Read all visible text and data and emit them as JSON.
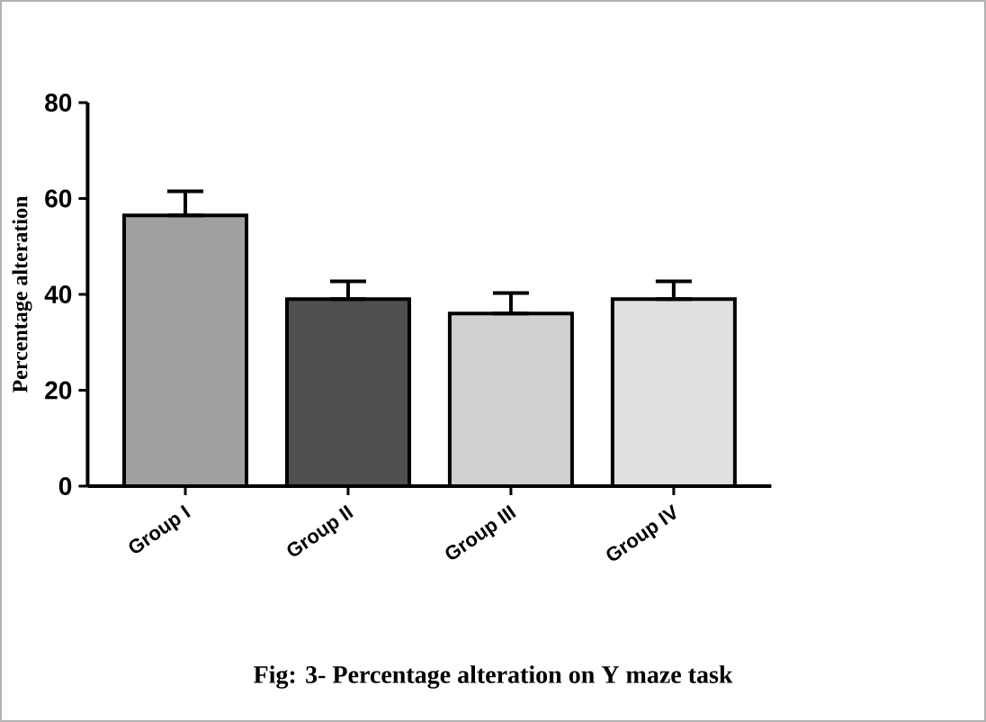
{
  "chart_data": {
    "type": "bar",
    "title": "Fig: 3- Percentage alteration on Y maze task",
    "ylabel": "Percentage alteration",
    "categories": [
      "Group I",
      "Group II",
      "Group III",
      "Group IV"
    ],
    "values": [
      56.5,
      39,
      36,
      39
    ],
    "errors": [
      [
        56.5,
        61.5
      ],
      [
        39,
        42.7
      ],
      [
        36,
        40.3
      ],
      [
        39,
        42.7
      ]
    ],
    "colors": [
      "#a0a0a0",
      "#505050",
      "#d0d0d0",
      "#e0e0e0"
    ],
    "ylim": [
      0,
      80
    ],
    "yticks": [
      0,
      20,
      40,
      60,
      80
    ],
    "grid": false
  }
}
